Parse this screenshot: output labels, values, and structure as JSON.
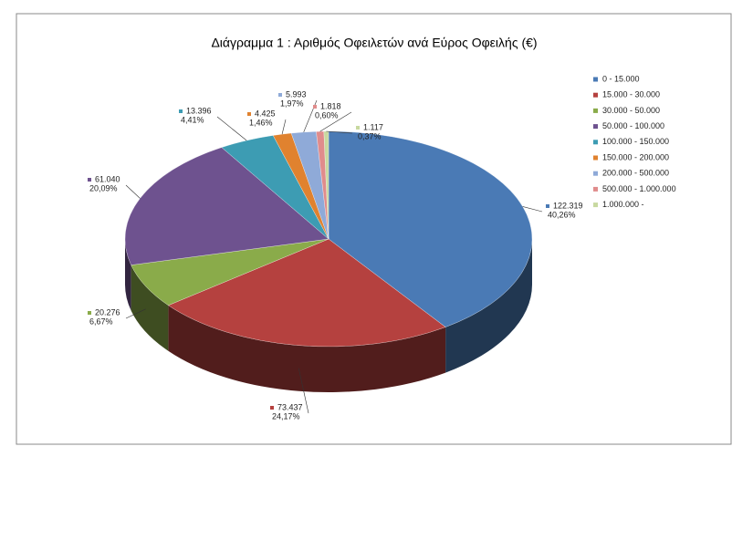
{
  "chart_data": {
    "type": "pie",
    "title": "Διάγραμμα 1 : Αριθμός Οφειλετών ανά Εύρος Οφειλής (€)",
    "categories": [
      "0 - 15.000",
      "15.000 - 30.000",
      "30.000 - 50.000",
      "50.000 - 100.000",
      "100.000 - 150.000",
      "150.000 - 200.000",
      "200.000 - 500.000",
      "500.000 - 1.000.000",
      "1.000.000 -"
    ],
    "values": [
      122319,
      73437,
      20276,
      61040,
      13396,
      4425,
      5993,
      1818,
      1117
    ],
    "value_labels": [
      "122.319",
      "73.437",
      "20.276",
      "61.040",
      "13.396",
      "4.425",
      "5.993",
      "1.818",
      "1.117"
    ],
    "percent": [
      40.26,
      24.17,
      6.67,
      20.09,
      4.41,
      1.46,
      1.97,
      0.6,
      0.37
    ],
    "percent_labels": [
      "40,26%",
      "24,17%",
      "6,67%",
      "20,09%",
      "4,41%",
      "1,46%",
      "1,97%",
      "0,60%",
      "0,37%"
    ],
    "colors": [
      "#4a7ab5",
      "#b5413f",
      "#8aab4a",
      "#6e528f",
      "#3d9cb3",
      "#e0822f",
      "#8faad8",
      "#e08c8c",
      "#c8d9a0"
    ],
    "legend": "right"
  }
}
